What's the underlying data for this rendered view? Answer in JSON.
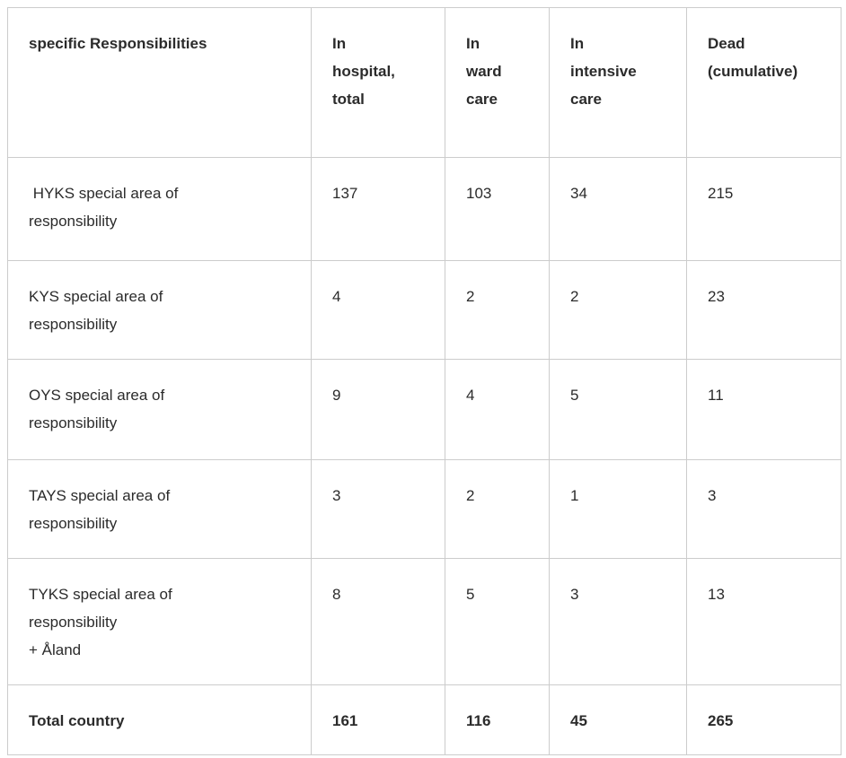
{
  "colors": {
    "border": "#cccccc",
    "text": "#2b2b2b",
    "background": "#ffffff"
  },
  "table": {
    "columns": [
      {
        "label": "specific Responsibilities"
      },
      {
        "label": "In\nhospital,\ntotal"
      },
      {
        "label": "In\nward\ncare"
      },
      {
        "label": "In\nintensive\ncare"
      },
      {
        "label": "Dead\n(cumulative)"
      }
    ],
    "rows": [
      {
        "label": " HYKS special area of\nresponsibility",
        "values": [
          "137",
          "103",
          "34",
          "215"
        ]
      },
      {
        "label": "KYS special area of\nresponsibility",
        "values": [
          "4",
          "2",
          "2",
          "23"
        ]
      },
      {
        "label": "OYS special area of\nresponsibility",
        "values": [
          "9",
          "4",
          "5",
          "11"
        ]
      },
      {
        "label": "TAYS special area of\nresponsibility",
        "values": [
          "3",
          "2",
          "1",
          "3"
        ]
      },
      {
        "label": "TYKS special area of\nresponsibility\n+ Åland",
        "values": [
          "8",
          "5",
          "3",
          "13"
        ]
      },
      {
        "label": "Total country",
        "values": [
          "161",
          "116",
          "45",
          "265"
        ]
      }
    ]
  },
  "chart_data": {
    "type": "table",
    "columns": [
      "specific Responsibilities",
      "In hospital, total",
      "In ward care",
      "In intensive care",
      "Dead (cumulative)"
    ],
    "rows": [
      {
        "area": "HYKS special area of responsibility",
        "in_hospital_total": 137,
        "in_ward_care": 103,
        "in_intensive_care": 34,
        "dead_cumulative": 215
      },
      {
        "area": "KYS special area of responsibility",
        "in_hospital_total": 4,
        "in_ward_care": 2,
        "in_intensive_care": 2,
        "dead_cumulative": 23
      },
      {
        "area": "OYS special area of responsibility",
        "in_hospital_total": 9,
        "in_ward_care": 4,
        "in_intensive_care": 5,
        "dead_cumulative": 11
      },
      {
        "area": "TAYS special area of responsibility",
        "in_hospital_total": 3,
        "in_ward_care": 2,
        "in_intensive_care": 1,
        "dead_cumulative": 3
      },
      {
        "area": "TYKS special area of responsibility + Åland",
        "in_hospital_total": 8,
        "in_ward_care": 5,
        "in_intensive_care": 3,
        "dead_cumulative": 13
      },
      {
        "area": "Total country",
        "in_hospital_total": 161,
        "in_ward_care": 116,
        "in_intensive_care": 45,
        "dead_cumulative": 265
      }
    ]
  }
}
